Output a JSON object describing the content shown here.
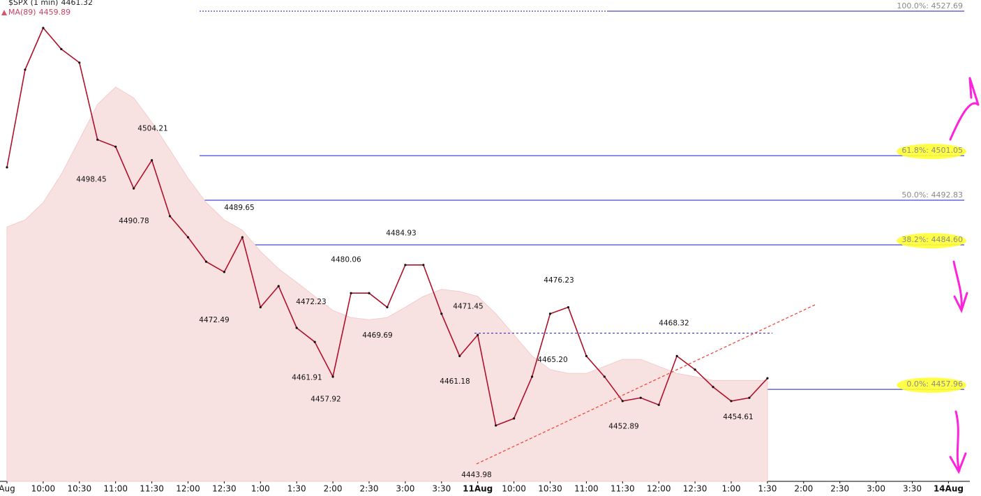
{
  "chart_data": {
    "type": "line",
    "categories": [
      "Aug",
      null,
      "10:00",
      null,
      "10:30",
      null,
      "11:00",
      null,
      "11:30",
      null,
      "12:00",
      null,
      "12:30",
      null,
      "1:00",
      null,
      "1:30",
      null,
      "2:00",
      null,
      "2:30",
      null,
      "3:00",
      null,
      "3:30",
      null,
      "11Aug",
      null,
      "10:00",
      null,
      "10:30",
      null,
      "11:00",
      null,
      "11:30",
      null,
      "12:00",
      null,
      "12:30",
      null,
      "1:00",
      null,
      "1:30",
      null,
      "2:00",
      null,
      "2:30",
      null,
      "3:00",
      null,
      "3:30",
      null,
      "14Aug"
    ],
    "series": [
      {
        "name": "$SPX (1 min)",
        "last": 4461.32,
        "color": "#b0102a",
        "values": [
          4498.9,
          4516.9,
          4524.6,
          4520.7,
          4518.2,
          4504.0,
          4502.7,
          4495.0,
          4500.2,
          4489.9,
          4486.0,
          4481.5,
          4479.6,
          4486.0,
          4473.1,
          4477.0,
          4469.3,
          4466.7,
          4460.3,
          4475.7,
          4475.7,
          4473.1,
          4480.9,
          4480.9,
          4471.9,
          4464.1,
          4468.0,
          4451.3,
          4452.6,
          4460.3,
          4471.9,
          4473.1,
          4464.1,
          4460.3,
          4455.8,
          4456.4,
          4455.1,
          4464.1,
          4461.6,
          4458.4,
          4455.8,
          4456.4,
          4460.0,
          null,
          null,
          null,
          null,
          null,
          null,
          null,
          null,
          null,
          null
        ]
      },
      {
        "name": "MA(89)",
        "last": 4459.89,
        "color": "#f8e1e1",
        "values": [
          4487.9,
          4489.2,
          4492.4,
          4497.6,
          4504.0,
          4510.5,
          4513.7,
          4511.7,
          4507.2,
          4502.1,
          4496.9,
          4492.4,
          4489.2,
          4487.3,
          4483.4,
          4480.2,
          4477.7,
          4475.1,
          4472.5,
          4471.2,
          4470.8,
          4471.2,
          4473.1,
          4475.1,
          4476.4,
          4476.0,
          4475.1,
          4471.9,
          4468.0,
          4464.1,
          4461.6,
          4460.9,
          4460.9,
          4462.2,
          4463.5,
          4463.5,
          4462.2,
          4460.9,
          4460.3,
          4459.6,
          4459.6,
          4459.6,
          4459.6,
          null,
          null,
          null,
          null,
          null,
          null,
          null,
          null,
          null,
          null
        ]
      }
    ],
    "ylim": [
      4441,
      4529.75
    ],
    "fib_levels": [
      {
        "value": 4527.69,
        "label": "100.0%: 4527.69"
      },
      {
        "value": 4501.05,
        "label": "61.8%: 4501.05"
      },
      {
        "value": 4492.83,
        "label": "50.0%: 4492.83"
      },
      {
        "value": 4484.6,
        "label": "38.2%: 4484.60"
      },
      {
        "value": 4457.96,
        "label": "0.0%: 4457.96"
      }
    ],
    "annotations": [
      {
        "value": 4504.21,
        "label": "4504.21"
      },
      {
        "value": 4498.45,
        "label": "4498.45"
      },
      {
        "value": 4490.78,
        "label": "4490.78"
      },
      {
        "value": 4489.65,
        "label": "4489.65"
      },
      {
        "value": 4472.49,
        "label": "4472.49"
      },
      {
        "value": 4484.93,
        "label": "4484.93"
      },
      {
        "value": 4480.06,
        "label": "4480.06"
      },
      {
        "value": 4472.23,
        "label": "4472.23"
      },
      {
        "value": 4469.69,
        "label": "4469.69"
      },
      {
        "value": 4461.91,
        "label": "4461.91"
      },
      {
        "value": 4457.92,
        "label": "4457.92"
      },
      {
        "value": 4471.45,
        "label": "4471.45"
      },
      {
        "value": 4461.18,
        "label": "4461.18"
      },
      {
        "value": 4443.98,
        "label": "4443.98"
      },
      {
        "value": 4476.23,
        "label": "4476.23"
      },
      {
        "value": 4465.2,
        "label": "4465.20"
      },
      {
        "value": 4468.32,
        "label": "4468.32"
      },
      {
        "value": 4452.89,
        "label": "4452.89"
      },
      {
        "value": 4454.61,
        "label": "4454.61"
      }
    ]
  }
}
